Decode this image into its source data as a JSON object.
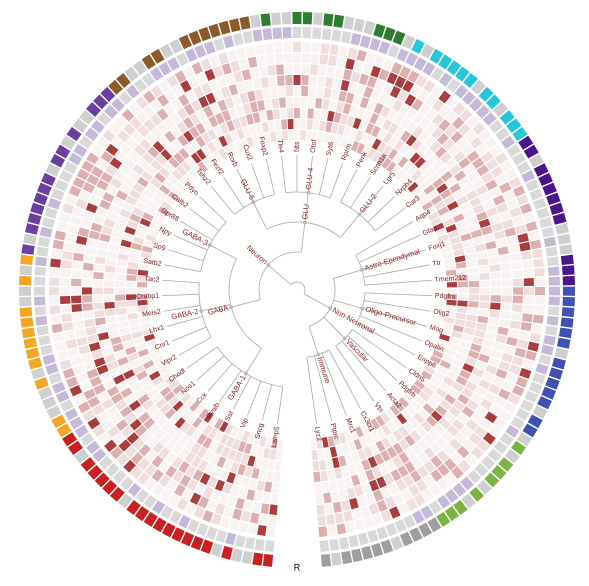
{
  "marker": "R",
  "tree": {
    "children": [
      {
        "label": "Neuron",
        "children": [
          {
            "label": "GABA",
            "children": [
              {
                "label": "GABA-1",
                "children": [
                  {
                    "label": "Lamp5"
                  },
                  {
                    "label": "Sncg"
                  },
                  {
                    "label": "Vip"
                  },
                  {
                    "label": "Sst"
                  },
                  {
                    "label": "Pvalb"
                  },
                  {
                    "label": "Cck"
                  },
                  {
                    "label": "Nos1"
                  },
                  {
                    "label": "Chodl"
                  }
                ]
              },
              {
                "label": "GABA-2",
                "children": [
                  {
                    "label": "Vipr2"
                  },
                  {
                    "label": "Cnr1"
                  },
                  {
                    "label": "Lhx1"
                  },
                  {
                    "label": "Meis2"
                  },
                  {
                    "label": "Crabp1"
                  },
                  {
                    "label": "Tac2"
                  }
                ]
              },
              {
                "label": "GABA-3",
                "children": [
                  {
                    "label": "Satb2"
                  },
                  {
                    "label": "Sp9"
                  },
                  {
                    "label": "Npy"
                  },
                  {
                    "label": "Gpr88"
                  },
                  {
                    "label": "Calb2"
                  },
                  {
                    "label": "Pdyn"
                  }
                ]
              }
            ]
          },
          {
            "label": "GLU",
            "children": [
              {
                "label": "GLU-6",
                "children": [
                  {
                    "label": "Tshz2"
                  },
                  {
                    "label": "Fezf2"
                  },
                  {
                    "label": "Rorb"
                  },
                  {
                    "label": "Cux2"
                  },
                  {
                    "label": "Foxp2"
                  }
                ]
              },
              {
                "label": "GLU-4",
                "children": [
                  {
                    "label": "Tle4"
                  },
                  {
                    "label": "Nts"
                  },
                  {
                    "label": "Otof"
                  },
                  {
                    "label": "Syt6"
                  },
                  {
                    "label": "Rprm"
                  }
                ]
              },
              {
                "label": "GLU-2",
                "children": [
                  {
                    "label": "Penk"
                  },
                  {
                    "label": "Scnn1a"
                  },
                  {
                    "label": "Lgr5"
                  },
                  {
                    "label": "Nxph4"
                  },
                  {
                    "label": "Car3"
                  }
                ]
              }
            ]
          }
        ]
      },
      {
        "label": "Non-Neuronal",
        "children": [
          {
            "label": "Astro-Ependymal",
            "children": [
              {
                "label": "Aqp4"
              },
              {
                "label": "Gfap"
              },
              {
                "label": "Foxj1"
              },
              {
                "label": "Ttr"
              },
              {
                "label": "Tmem212"
              }
            ]
          },
          {
            "label": "Oligo-Precursor",
            "children": [
              {
                "label": "Pdgfra"
              },
              {
                "label": "Olig2"
              },
              {
                "label": "Mog"
              },
              {
                "label": "Opalin"
              },
              {
                "label": "Enpp6"
              }
            ]
          },
          {
            "label": "Vascular",
            "children": [
              {
                "label": "Cldn5"
              },
              {
                "label": "Pdgfrb"
              },
              {
                "label": "Acta2"
              },
              {
                "label": "Vtn"
              }
            ]
          },
          {
            "label": "Immune",
            "children": [
              {
                "label": "Cx3cr1"
              },
              {
                "label": "Mrc1"
              },
              {
                "label": "Ptprc"
              },
              {
                "label": "Lyz2"
              }
            ]
          }
        ]
      }
    ]
  }
}
